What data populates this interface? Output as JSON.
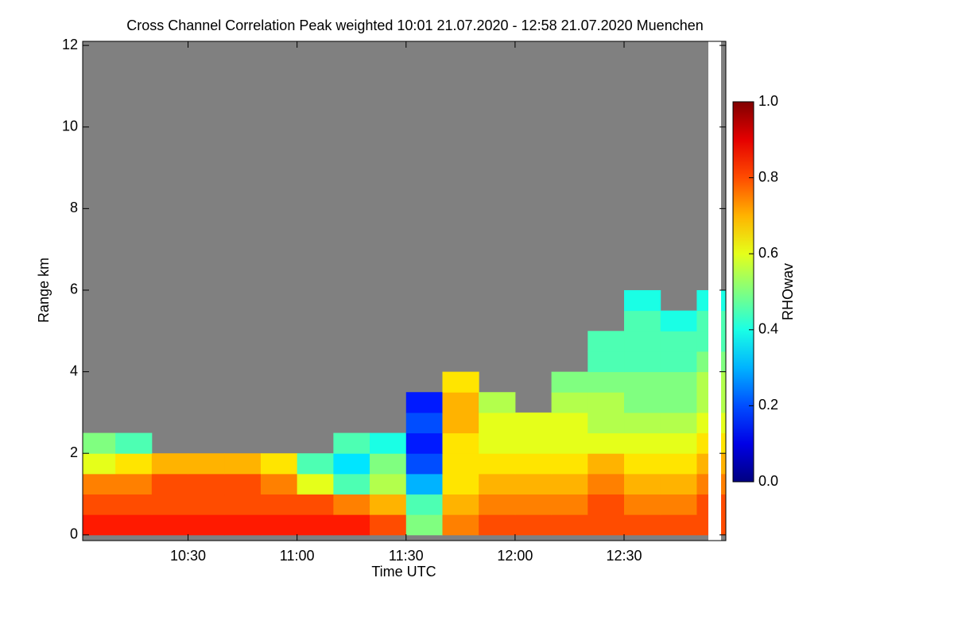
{
  "chart_data": {
    "type": "heatmap",
    "title": "Cross Channel Correlation Peak weighted   10:01 21.07.2020 - 12:58 21.07.2020 Muenchen",
    "x_label": "Time UTC",
    "y_label": "Range km",
    "colorbar_label": "RHOwav",
    "xlim": [
      10.0167,
      12.9667
    ],
    "xticks": [
      {
        "value": 10.5,
        "label": "10:30"
      },
      {
        "value": 11,
        "label": "11:00"
      },
      {
        "value": 11.5,
        "label": "11:30"
      },
      {
        "value": 12,
        "label": "12:00"
      },
      {
        "value": 12.5,
        "label": "12:30"
      }
    ],
    "ylim": [
      -0.14,
      12.1
    ],
    "yticks": [
      0,
      2,
      4,
      6,
      8,
      10,
      12
    ],
    "clim": [
      0,
      1
    ],
    "cticks": [
      {
        "value": 0,
        "label": "0.0"
      },
      0.2,
      0.4,
      0.6,
      0.8,
      {
        "value": 1,
        "label": "1.0"
      }
    ],
    "colormap": "jet",
    "no_data_color": "#808080",
    "xbins": [
      10.0167,
      10.1667,
      10.3333,
      10.5,
      10.6667,
      10.8333,
      11,
      11.1667,
      11.3333,
      11.5,
      11.6667,
      11.8333,
      12,
      12.1667,
      12.3333,
      12.5,
      12.6667,
      12.8333,
      12.9667
    ],
    "ybins": [
      0,
      0.5,
      1,
      1.5,
      2,
      2.5,
      3,
      3.5,
      4,
      4.5,
      5,
      5.5,
      6
    ],
    "z": [
      [
        0.85,
        0.85,
        0.85,
        0.85,
        0.85,
        0.85,
        0.85,
        0.85,
        0.8,
        0.5,
        0.75,
        0.8,
        0.8,
        0.8,
        0.8,
        0.8,
        0.8,
        0.8
      ],
      [
        0.8,
        0.8,
        0.8,
        0.8,
        0.8,
        0.8,
        0.8,
        0.75,
        0.7,
        0.45,
        0.7,
        0.75,
        0.75,
        0.75,
        0.8,
        0.75,
        0.75,
        0.8
      ],
      [
        0.75,
        0.75,
        0.8,
        0.8,
        0.8,
        0.75,
        0.6,
        0.45,
        0.55,
        0.3,
        0.65,
        0.7,
        0.7,
        0.7,
        0.75,
        0.7,
        0.7,
        0.75
      ],
      [
        0.6,
        0.65,
        0.7,
        0.7,
        0.7,
        0.65,
        0.45,
        0.35,
        0.5,
        0.2,
        0.65,
        0.65,
        0.65,
        0.65,
        0.7,
        0.65,
        0.65,
        0.7
      ],
      [
        0.5,
        0.45,
        null,
        null,
        null,
        null,
        null,
        0.45,
        0.4,
        0.15,
        0.65,
        0.6,
        0.6,
        0.6,
        0.6,
        0.6,
        0.6,
        0.65
      ],
      [
        null,
        null,
        null,
        null,
        null,
        null,
        null,
        null,
        null,
        0.2,
        0.7,
        0.6,
        0.6,
        0.6,
        0.55,
        0.55,
        0.55,
        0.6
      ],
      [
        null,
        null,
        null,
        null,
        null,
        null,
        null,
        null,
        null,
        0.15,
        0.7,
        0.55,
        null,
        0.55,
        0.55,
        0.5,
        0.5,
        0.55
      ],
      [
        null,
        null,
        null,
        null,
        null,
        null,
        null,
        null,
        null,
        null,
        0.65,
        null,
        null,
        0.5,
        0.5,
        0.5,
        0.5,
        0.55
      ],
      [
        null,
        null,
        null,
        null,
        null,
        null,
        null,
        null,
        null,
        null,
        null,
        null,
        null,
        null,
        0.45,
        0.45,
        0.45,
        0.5
      ],
      [
        null,
        null,
        null,
        null,
        null,
        null,
        null,
        null,
        null,
        null,
        null,
        null,
        null,
        null,
        0.45,
        0.45,
        0.45,
        0.45
      ],
      [
        null,
        null,
        null,
        null,
        null,
        null,
        null,
        null,
        null,
        null,
        null,
        null,
        null,
        null,
        null,
        0.45,
        0.4,
        0.45
      ],
      [
        null,
        null,
        null,
        null,
        null,
        null,
        null,
        null,
        null,
        null,
        null,
        null,
        null,
        null,
        null,
        0.4,
        null,
        0.4
      ]
    ]
  }
}
